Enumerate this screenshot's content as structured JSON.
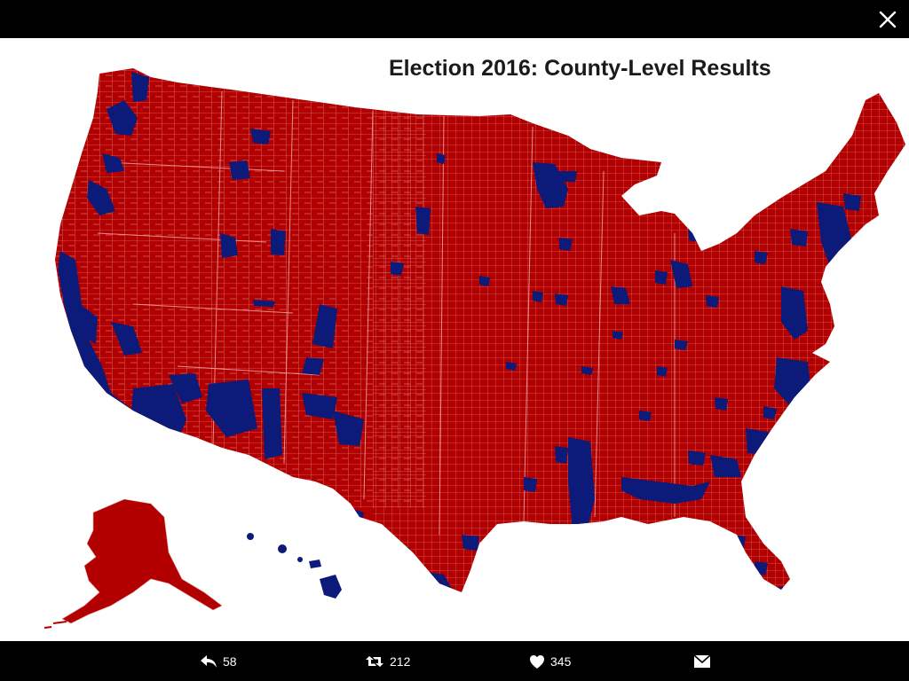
{
  "map": {
    "title": "Election 2016: County-Level Results",
    "colors": {
      "republican": "#b20000",
      "democrat": "#0c1a7a",
      "border": "#e8a0a0",
      "background": "#ffffff"
    }
  },
  "viewer": {
    "close_icon": "close-icon",
    "actions": {
      "reply": {
        "icon": "reply-icon",
        "count": "58"
      },
      "retweet": {
        "icon": "retweet-icon",
        "count": "212"
      },
      "like": {
        "icon": "heart-icon",
        "count": "345"
      },
      "message": {
        "icon": "envelope-icon"
      }
    }
  }
}
